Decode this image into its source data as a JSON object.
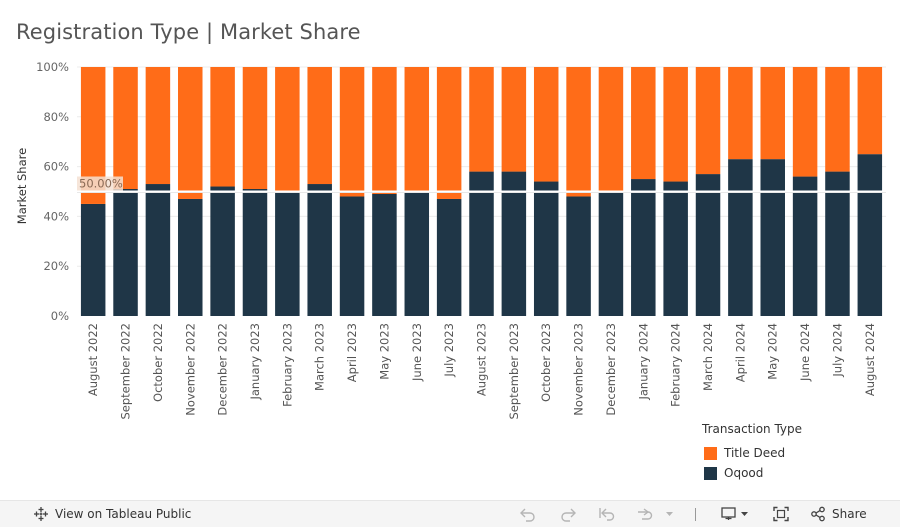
{
  "title": "Registration Type | Market Share",
  "chart_data": {
    "type": "bar",
    "stacked": true,
    "normalized": true,
    "ylabel": "Market Share",
    "xlabel": "",
    "ylim": [
      0,
      100
    ],
    "yticks": [
      "0%",
      "20%",
      "40%",
      "60%",
      "80%",
      "100%"
    ],
    "categories": [
      "August 2022",
      "September 2022",
      "October 2022",
      "November 2022",
      "December 2022",
      "January 2023",
      "February 2023",
      "March 2023",
      "April 2023",
      "May 2023",
      "June 2023",
      "July 2023",
      "August 2023",
      "September 2023",
      "October 2023",
      "November 2023",
      "December 2023",
      "January 2024",
      "February 2024",
      "March 2024",
      "April 2024",
      "May 2024",
      "June 2024",
      "July 2024",
      "August 2024"
    ],
    "series": [
      {
        "name": "Oqood",
        "color": "#1f3647",
        "values": [
          45,
          51,
          53,
          47,
          52,
          51,
          50,
          53,
          48,
          49,
          50,
          47,
          58,
          58,
          54,
          48,
          50,
          55,
          54,
          57,
          63,
          63,
          56,
          58,
          65
        ]
      },
      {
        "name": "Title Deed",
        "color": "#ff6c18",
        "values": [
          55,
          49,
          47,
          53,
          48,
          49,
          50,
          47,
          52,
          51,
          50,
          53,
          42,
          42,
          46,
          52,
          50,
          45,
          46,
          43,
          37,
          37,
          44,
          42,
          35
        ]
      }
    ],
    "reference_line": {
      "value": 50,
      "label": "50.00%"
    },
    "legend": {
      "title": "Transaction Type",
      "placement": "bottom-right",
      "order": [
        "Title Deed",
        "Oqood"
      ]
    },
    "grid": true
  },
  "toolbar": {
    "view_label": "View on Tableau Public",
    "share_label": "Share",
    "icons": [
      "tableau-logo-icon",
      "undo-icon",
      "redo-icon",
      "revert-icon",
      "refresh-icon",
      "download-icon",
      "fullscreen-icon",
      "share-icon"
    ]
  }
}
